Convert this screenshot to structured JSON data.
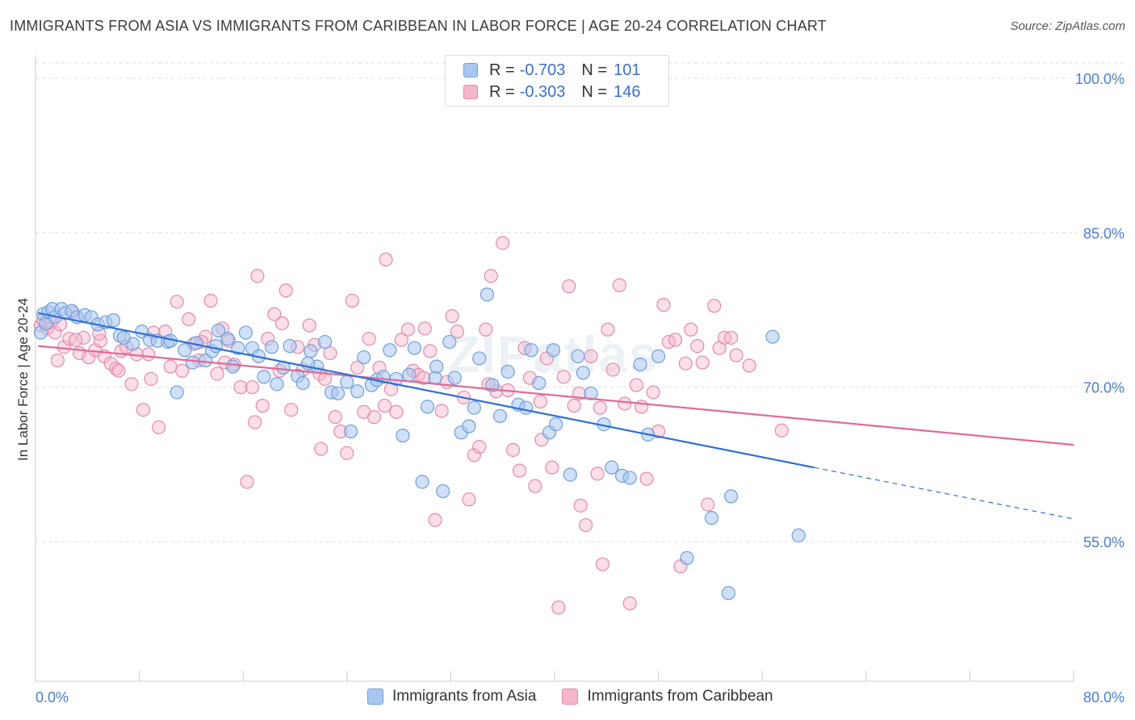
{
  "title": "IMMIGRANTS FROM ASIA VS IMMIGRANTS FROM CARIBBEAN IN LABOR FORCE | AGE 20-24 CORRELATION CHART",
  "source": "Source: ZipAtlas.com",
  "watermark": "ZIPatlas",
  "legend": {
    "asia": {
      "r_label": "R = ",
      "r_value": "-0.703",
      "n_label": "N = ",
      "n_value": "101"
    },
    "caribbean": {
      "r_label": "R = ",
      "r_value": "-0.303",
      "n_label": "N = ",
      "n_value": "146"
    }
  },
  "colors": {
    "asia_fill": "#a9c6ee",
    "asia_stroke": "#6f9fdc",
    "asia_line": "#2f6fd6",
    "carib_fill": "#f4b6cb",
    "carib_stroke": "#e48aab",
    "carib_line": "#e26a96",
    "tick_text": "#4a7fd0",
    "grid": "#dddddd"
  },
  "chart_data": {
    "type": "scatter",
    "title": "IMMIGRANTS FROM ASIA VS IMMIGRANTS FROM CARIBBEAN IN LABOR FORCE | AGE 20-24 CORRELATION CHART",
    "xlabel": "",
    "ylabel": "In Labor Force | Age 20-24",
    "xlim": [
      0,
      80
    ],
    "ylim": [
      40,
      105
    ],
    "x_tick_labels": [
      "0.0%",
      "80.0%"
    ],
    "y_ticks": [
      55,
      70,
      85,
      100
    ],
    "y_tick_labels": [
      "55.0%",
      "70.0%",
      "85.0%",
      "100.0%"
    ],
    "grid": "horizontal dashed",
    "legend_position": "top-center",
    "series": [
      {
        "name": "Immigrants from Asia",
        "r": -0.703,
        "n": 101,
        "trend": {
          "x0": 0.2,
          "y0": 77.2,
          "x1": 60,
          "y1": 62.2,
          "dashed_to_x": 80,
          "dashed_to_y": 57.2
        },
        "points": [
          [
            0.4,
            75.3
          ],
          [
            0.6,
            77.1
          ],
          [
            0.8,
            76.2
          ],
          [
            1.0,
            77.3
          ],
          [
            1.3,
            77.6
          ],
          [
            1.5,
            76.8
          ],
          [
            2.0,
            77.6
          ],
          [
            2.3,
            77.2
          ],
          [
            2.8,
            77.4
          ],
          [
            3.2,
            76.8
          ],
          [
            3.8,
            77.0
          ],
          [
            4.3,
            76.8
          ],
          [
            4.8,
            76.1
          ],
          [
            5.4,
            76.3
          ],
          [
            6.0,
            76.5
          ],
          [
            6.5,
            75.0
          ],
          [
            7.5,
            74.2
          ],
          [
            8.2,
            75.4
          ],
          [
            8.8,
            74.6
          ],
          [
            9.4,
            74.5
          ],
          [
            10.2,
            74.4
          ],
          [
            10.9,
            69.5
          ],
          [
            11.5,
            73.6
          ],
          [
            12.1,
            72.4
          ],
          [
            12.4,
            74.3
          ],
          [
            13.1,
            72.6
          ],
          [
            13.6,
            73.5
          ],
          [
            14.1,
            75.5
          ],
          [
            14.8,
            74.7
          ],
          [
            15.2,
            72.0
          ],
          [
            15.6,
            73.8
          ],
          [
            16.2,
            75.3
          ],
          [
            16.7,
            73.8
          ],
          [
            17.2,
            73.0
          ],
          [
            17.6,
            71.0
          ],
          [
            18.2,
            73.9
          ],
          [
            18.6,
            70.3
          ],
          [
            19.1,
            71.9
          ],
          [
            19.6,
            74.0
          ],
          [
            20.2,
            71.1
          ],
          [
            20.6,
            70.4
          ],
          [
            21.2,
            73.5
          ],
          [
            21.7,
            72.0
          ],
          [
            22.3,
            74.4
          ],
          [
            22.8,
            69.5
          ],
          [
            23.3,
            69.4
          ],
          [
            24.0,
            70.5
          ],
          [
            24.3,
            65.7
          ],
          [
            24.8,
            69.6
          ],
          [
            25.3,
            72.9
          ],
          [
            25.9,
            70.2
          ],
          [
            26.3,
            70.7
          ],
          [
            26.8,
            71.0
          ],
          [
            27.3,
            73.6
          ],
          [
            27.8,
            70.8
          ],
          [
            28.3,
            65.3
          ],
          [
            28.8,
            71.2
          ],
          [
            29.2,
            73.8
          ],
          [
            29.8,
            60.8
          ],
          [
            30.2,
            68.1
          ],
          [
            30.8,
            70.9
          ],
          [
            31.4,
            59.9
          ],
          [
            31.9,
            74.4
          ],
          [
            32.3,
            70.9
          ],
          [
            32.8,
            65.6
          ],
          [
            33.4,
            66.2
          ],
          [
            33.8,
            68.0
          ],
          [
            34.2,
            72.8
          ],
          [
            34.8,
            79.0
          ],
          [
            35.2,
            70.2
          ],
          [
            35.8,
            67.2
          ],
          [
            36.4,
            71.5
          ],
          [
            37.2,
            68.3
          ],
          [
            37.8,
            68.0
          ],
          [
            38.2,
            73.6
          ],
          [
            38.8,
            70.4
          ],
          [
            39.6,
            65.6
          ],
          [
            40.1,
            66.4
          ],
          [
            41.2,
            61.5
          ],
          [
            41.8,
            73.0
          ],
          [
            42.2,
            71.4
          ],
          [
            42.8,
            69.4
          ],
          [
            43.8,
            66.4
          ],
          [
            44.4,
            62.2
          ],
          [
            45.2,
            61.4
          ],
          [
            45.8,
            61.2
          ],
          [
            46.6,
            72.2
          ],
          [
            47.2,
            65.4
          ],
          [
            48.0,
            73.0
          ],
          [
            50.2,
            53.4
          ],
          [
            52.1,
            57.3
          ],
          [
            53.4,
            50.0
          ],
          [
            53.6,
            59.4
          ],
          [
            56.8,
            74.9
          ],
          [
            58.8,
            55.6
          ],
          [
            10.4,
            74.5
          ],
          [
            6.8,
            74.8
          ],
          [
            13.9,
            74.0
          ],
          [
            21.0,
            72.3
          ],
          [
            39.9,
            73.6
          ],
          [
            30.9,
            72.0
          ]
        ]
      },
      {
        "name": "Immigrants from Caribbean",
        "r": -0.303,
        "n": 146,
        "trend": {
          "x0": 0.2,
          "y0": 74.0,
          "x1": 80,
          "y1": 64.4
        },
        "points": [
          [
            0.4,
            76.0
          ],
          [
            0.6,
            76.5
          ],
          [
            0.9,
            75.7
          ],
          [
            1.2,
            76.3
          ],
          [
            1.5,
            75.3
          ],
          [
            1.9,
            76.1
          ],
          [
            2.2,
            73.9
          ],
          [
            2.6,
            74.7
          ],
          [
            2.9,
            77.2
          ],
          [
            3.4,
            73.3
          ],
          [
            3.7,
            74.8
          ],
          [
            4.1,
            72.9
          ],
          [
            4.6,
            73.6
          ],
          [
            5.0,
            74.5
          ],
          [
            5.3,
            73.0
          ],
          [
            5.8,
            72.3
          ],
          [
            6.2,
            71.8
          ],
          [
            6.6,
            73.5
          ],
          [
            7.0,
            73.9
          ],
          [
            7.4,
            70.3
          ],
          [
            7.8,
            73.2
          ],
          [
            8.3,
            67.8
          ],
          [
            8.7,
            73.2
          ],
          [
            9.1,
            75.3
          ],
          [
            9.5,
            66.1
          ],
          [
            10.0,
            75.4
          ],
          [
            10.4,
            72.0
          ],
          [
            10.9,
            78.3
          ],
          [
            11.3,
            71.6
          ],
          [
            11.8,
            76.6
          ],
          [
            12.2,
            74.2
          ],
          [
            12.6,
            72.6
          ],
          [
            13.1,
            74.9
          ],
          [
            13.5,
            78.4
          ],
          [
            14.0,
            71.3
          ],
          [
            14.4,
            75.7
          ],
          [
            14.9,
            74.5
          ],
          [
            15.3,
            72.2
          ],
          [
            15.8,
            70.0
          ],
          [
            16.3,
            60.8
          ],
          [
            16.7,
            70.0
          ],
          [
            17.1,
            80.8
          ],
          [
            17.5,
            68.2
          ],
          [
            17.9,
            74.7
          ],
          [
            18.4,
            77.1
          ],
          [
            18.8,
            71.6
          ],
          [
            19.3,
            79.4
          ],
          [
            19.7,
            67.8
          ],
          [
            20.2,
            73.9
          ],
          [
            20.6,
            71.7
          ],
          [
            21.1,
            76.0
          ],
          [
            21.5,
            74.1
          ],
          [
            21.9,
            71.3
          ],
          [
            22.3,
            70.8
          ],
          [
            22.7,
            73.3
          ],
          [
            23.1,
            67.1
          ],
          [
            23.5,
            65.7
          ],
          [
            24.0,
            63.6
          ],
          [
            24.4,
            78.4
          ],
          [
            24.8,
            71.9
          ],
          [
            25.3,
            67.6
          ],
          [
            25.7,
            74.7
          ],
          [
            26.1,
            67.1
          ],
          [
            26.5,
            71.9
          ],
          [
            27.0,
            82.4
          ],
          [
            27.4,
            69.8
          ],
          [
            27.8,
            67.6
          ],
          [
            28.2,
            74.6
          ],
          [
            28.7,
            75.6
          ],
          [
            29.1,
            71.6
          ],
          [
            29.5,
            71.2
          ],
          [
            30.0,
            75.7
          ],
          [
            30.4,
            73.5
          ],
          [
            30.8,
            57.1
          ],
          [
            31.3,
            67.7
          ],
          [
            31.7,
            70.5
          ],
          [
            32.1,
            76.9
          ],
          [
            32.5,
            75.4
          ],
          [
            33.0,
            69.0
          ],
          [
            33.4,
            59.1
          ],
          [
            33.8,
            63.4
          ],
          [
            34.2,
            64.2
          ],
          [
            34.7,
            75.6
          ],
          [
            35.1,
            80.8
          ],
          [
            35.5,
            69.6
          ],
          [
            36.0,
            84.0
          ],
          [
            36.4,
            69.7
          ],
          [
            36.8,
            63.9
          ],
          [
            37.3,
            61.9
          ],
          [
            37.7,
            73.8
          ],
          [
            38.1,
            70.9
          ],
          [
            38.5,
            60.4
          ],
          [
            39.0,
            64.9
          ],
          [
            39.4,
            72.8
          ],
          [
            39.8,
            62.2
          ],
          [
            40.3,
            48.6
          ],
          [
            40.7,
            71.0
          ],
          [
            41.1,
            79.8
          ],
          [
            41.5,
            68.2
          ],
          [
            42.0,
            58.5
          ],
          [
            42.4,
            56.6
          ],
          [
            42.8,
            73.0
          ],
          [
            43.3,
            61.6
          ],
          [
            43.7,
            52.8
          ],
          [
            44.1,
            75.6
          ],
          [
            44.5,
            71.7
          ],
          [
            45.0,
            79.9
          ],
          [
            45.4,
            68.4
          ],
          [
            45.8,
            49.0
          ],
          [
            46.3,
            70.2
          ],
          [
            46.7,
            68.1
          ],
          [
            47.1,
            61.1
          ],
          [
            47.6,
            69.5
          ],
          [
            48.0,
            65.7
          ],
          [
            48.4,
            78.0
          ],
          [
            48.8,
            74.4
          ],
          [
            49.3,
            74.6
          ],
          [
            49.7,
            52.6
          ],
          [
            50.1,
            72.3
          ],
          [
            50.5,
            75.6
          ],
          [
            51.0,
            74.0
          ],
          [
            51.4,
            72.4
          ],
          [
            51.8,
            58.6
          ],
          [
            52.3,
            77.9
          ],
          [
            52.7,
            73.8
          ],
          [
            53.1,
            74.8
          ],
          [
            53.6,
            74.8
          ],
          [
            54.0,
            73.1
          ],
          [
            55.0,
            72.1
          ],
          [
            57.5,
            65.8
          ],
          [
            1.7,
            72.6
          ],
          [
            3.1,
            74.6
          ],
          [
            4.9,
            75.2
          ],
          [
            6.4,
            71.6
          ],
          [
            8.9,
            70.8
          ],
          [
            12.8,
            74.4
          ],
          [
            14.6,
            72.4
          ],
          [
            16.9,
            66.6
          ],
          [
            19.0,
            76.2
          ],
          [
            22.0,
            64.0
          ],
          [
            26.9,
            68.2
          ],
          [
            29.9,
            70.9
          ],
          [
            34.9,
            70.3
          ],
          [
            38.9,
            68.6
          ],
          [
            41.9,
            69.4
          ],
          [
            43.5,
            68.0
          ]
        ]
      }
    ]
  }
}
